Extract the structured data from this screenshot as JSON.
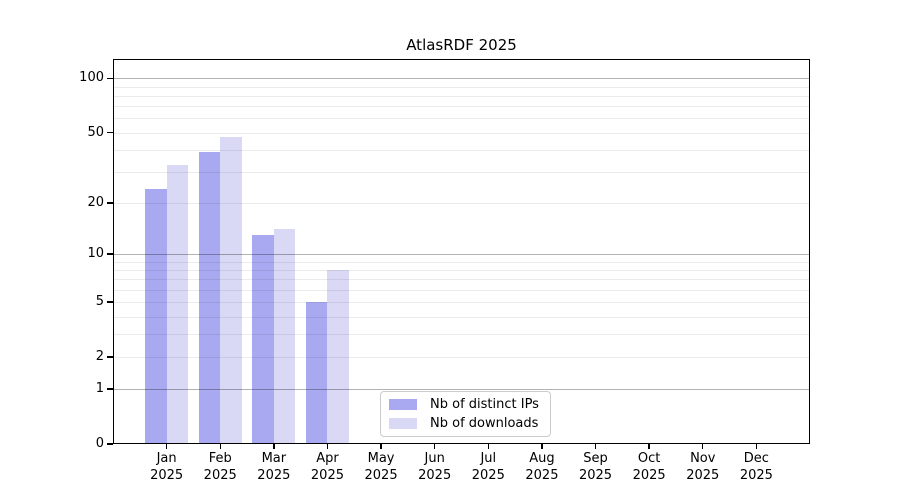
{
  "chart_data": {
    "type": "bar",
    "title": "AtlasRDF 2025",
    "year": "2025",
    "categories": [
      "Jan",
      "Feb",
      "Mar",
      "Apr",
      "May",
      "Jun",
      "Jul",
      "Aug",
      "Sep",
      "Oct",
      "Nov",
      "Dec"
    ],
    "series": [
      {
        "name": "Nb of distinct IPs",
        "color": "#a9a9f1",
        "values": [
          24,
          39,
          13,
          5,
          null,
          null,
          null,
          null,
          null,
          null,
          null,
          null
        ]
      },
      {
        "name": "Nb of downloads",
        "color": "#d9d9f6",
        "values": [
          33,
          47,
          14,
          8,
          null,
          null,
          null,
          null,
          null,
          null,
          null,
          null
        ]
      }
    ],
    "xlabel": "",
    "ylabel": "",
    "yscale": "log1p",
    "ylim": [
      0,
      128
    ],
    "yticks": [
      0,
      1,
      2,
      5,
      10,
      20,
      50,
      100
    ],
    "major_gridlines": [
      1,
      10,
      100
    ],
    "minor_gridlines": [
      2,
      3,
      4,
      5,
      6,
      7,
      8,
      9,
      20,
      30,
      40,
      50,
      60,
      70,
      80,
      90
    ],
    "grid": "on",
    "legend_position": "lower center inside axes",
    "colors": {
      "axis": "#000000",
      "grid_major": "rgba(0,0,0,0.30)",
      "grid_minor": "rgba(0,0,0,0.08)",
      "legend_border": "#cccccc",
      "background": "#ffffff"
    }
  }
}
